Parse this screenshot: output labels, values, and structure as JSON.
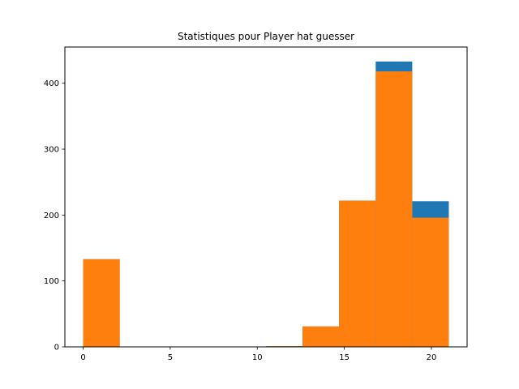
{
  "chart_data": {
    "type": "histogram",
    "title": "Statistiques pour Player hat guesser",
    "xlabel": "",
    "ylabel": "",
    "xlim": [
      -1.05,
      22.05
    ],
    "ylim": [
      0,
      455
    ],
    "xticks": [
      0,
      5,
      10,
      15,
      20
    ],
    "yticks": [
      0,
      100,
      200,
      300,
      400
    ],
    "grid": false,
    "bin_edges": [
      0,
      2.1,
      4.2,
      6.3,
      8.4,
      10.5,
      12.6,
      14.7,
      16.8,
      18.9,
      21.0
    ],
    "series": [
      {
        "color": "#1f77b4",
        "values": [
          133,
          0,
          0,
          0,
          0,
          1,
          31,
          222,
          433,
          221
        ]
      },
      {
        "color": "#ff7f0e",
        "values": [
          133,
          0,
          0,
          0,
          0,
          1,
          31,
          222,
          418,
          196
        ]
      }
    ]
  }
}
